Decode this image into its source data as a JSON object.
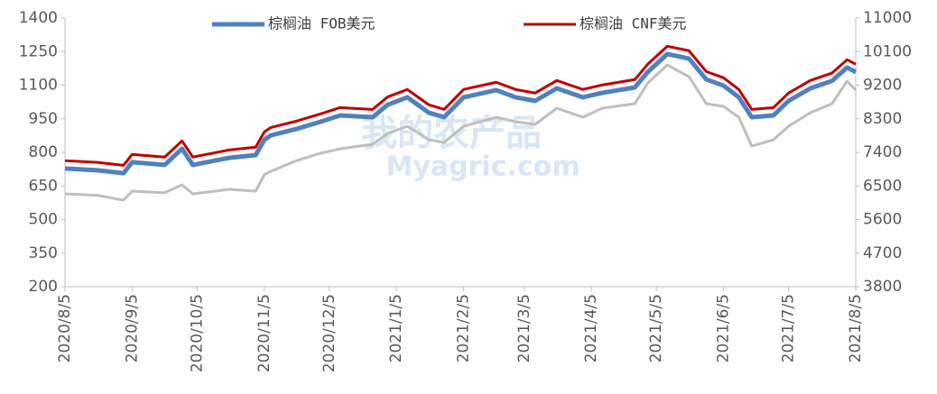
{
  "chart_data": {
    "type": "line",
    "watermark": [
      "我的农产品",
      "Myagric.com"
    ],
    "x": [
      "2020/8/5",
      "2020/8/20",
      "2020/9/1",
      "2020/9/5",
      "2020/9/20",
      "2020/9/28",
      "2020/10/3",
      "2020/10/20",
      "2020/11/1",
      "2020/11/5",
      "2020/11/8",
      "2020/11/20",
      "2020/12/1",
      "2020/12/10",
      "2020/12/25",
      "2021/1/1",
      "2021/1/10",
      "2021/1/20",
      "2021/1/27",
      "2021/2/5",
      "2021/2/20",
      "2021/3/1",
      "2021/3/10",
      "2021/3/20",
      "2021/4/1",
      "2021/4/10",
      "2021/4/25",
      "2021/5/1",
      "2021/5/10",
      "2021/5/20",
      "2021/5/28",
      "2021/6/5",
      "2021/6/12",
      "2021/6/18",
      "2021/6/28",
      "2021/7/5",
      "2021/7/15",
      "2021/7/25",
      "2021/8/1",
      "2021/8/5"
    ],
    "series": [
      {
        "name": "棕榈油 FOB美元",
        "color": "#4f81bd",
        "values": [
          728,
          720,
          707,
          756,
          744,
          816,
          744,
          776,
          788,
          856,
          876,
          905,
          937,
          965,
          957,
          1013,
          1046,
          977,
          957,
          1046,
          1078,
          1046,
          1030,
          1086,
          1046,
          1066,
          1090,
          1159,
          1239,
          1219,
          1126,
          1098,
          1046,
          957,
          965,
          1030,
          1086,
          1119,
          1179,
          1159
        ]
      },
      {
        "name": "棕榈油 CNF美元",
        "color": "#c00000",
        "values": [
          763,
          755,
          742,
          791,
          779,
          851,
          779,
          811,
          823,
          891,
          911,
          940,
          972,
          1000,
          992,
          1048,
          1081,
          1012,
          992,
          1081,
          1113,
          1081,
          1065,
          1121,
          1081,
          1101,
          1125,
          1194,
          1274,
          1254,
          1161,
          1133,
          1081,
          992,
          1000,
          1065,
          1121,
          1154,
          1214,
          1194
        ]
      },
      {
        "color": "#bfbfbf",
        "axis": "y2",
        "values": [
          6289,
          6250,
          6119,
          6361,
          6320,
          6530,
          6289,
          6409,
          6361,
          6800,
          6892,
          7182,
          7376,
          7496,
          7617,
          7907,
          8100,
          7738,
          7666,
          8100,
          8342,
          8221,
          8149,
          8584,
          8342,
          8584,
          8705,
          9260,
          9743,
          9429,
          8705,
          8632,
          8342,
          7569,
          7738,
          8100,
          8463,
          8705,
          9308,
          9067
        ]
      }
    ],
    "ylim": [
      200,
      1400
    ],
    "yticks": [
      200,
      350,
      500,
      650,
      800,
      950,
      1100,
      1250,
      1400
    ],
    "y2lim": [
      3800,
      11000
    ],
    "y2ticks": [
      3800,
      4700,
      5600,
      6500,
      7400,
      8300,
      9200,
      10100,
      11000
    ],
    "xticks": [
      "2020/8/5",
      "2020/9/5",
      "2020/10/5",
      "2020/11/5",
      "2020/12/5",
      "2021/1/5",
      "2021/2/5",
      "2021/3/5",
      "2021/4/5",
      "2021/5/5",
      "2021/6/5",
      "2021/7/5",
      "2021/8/5"
    ],
    "legend": "top"
  }
}
